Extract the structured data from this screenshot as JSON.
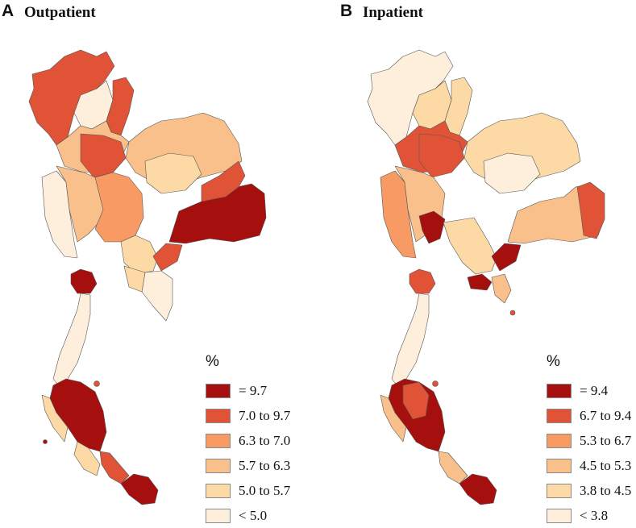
{
  "panels": [
    {
      "letter": "A",
      "title": "Outpatient",
      "legend": {
        "title": "%",
        "items": [
          {
            "label": "= 9.7",
            "color": "#a50f0d"
          },
          {
            "label": "7.0 to 9.7",
            "color": "#e15336"
          },
          {
            "label": "6.3 to 7.0",
            "color": "#f79a63"
          },
          {
            "label": "5.7 to 6.3",
            "color": "#f9c08b"
          },
          {
            "label": "5.0 to 5.7",
            "color": "#fdd9a6"
          },
          {
            "label": "< 5.0",
            "color": "#fdefdc"
          }
        ]
      }
    },
    {
      "letter": "B",
      "title": "Inpatient",
      "legend": {
        "title": "%",
        "items": [
          {
            "label": "= 9.4",
            "color": "#a50f0d"
          },
          {
            "label": "6.7 to 9.4",
            "color": "#e15336"
          },
          {
            "label": "5.3 to 6.7",
            "color": "#f79a63"
          },
          {
            "label": "4.5 to 5.3",
            "color": "#f9c08b"
          },
          {
            "label": "3.8 to 4.5",
            "color": "#fdd9a6"
          },
          {
            "label": "< 3.8",
            "color": "#fdefdc"
          }
        ]
      }
    }
  ]
}
